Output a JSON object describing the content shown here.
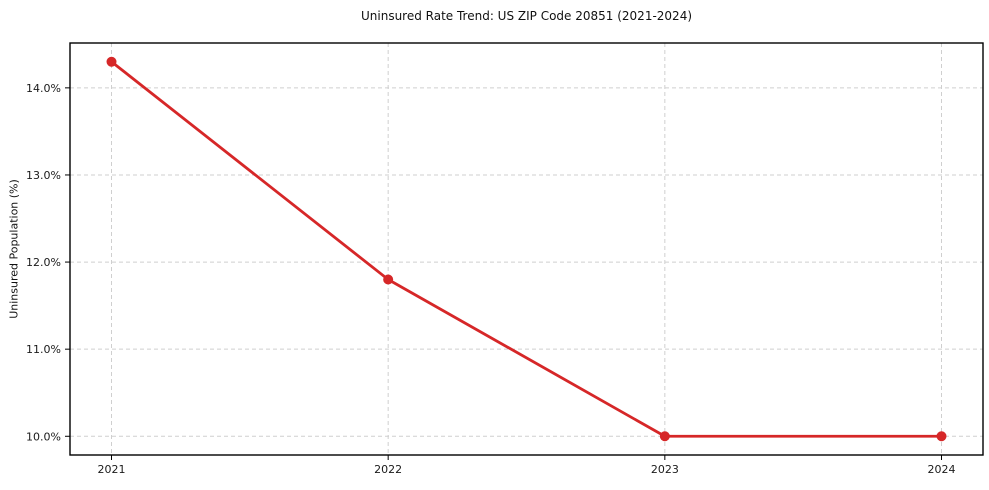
{
  "chart_data": {
    "type": "line",
    "title": "Uninsured Rate Trend: US ZIP Code 20851 (2021-2024)",
    "xlabel": "",
    "ylabel": "Uninsured Population (%)",
    "x": [
      2021,
      2022,
      2023,
      2024
    ],
    "y": [
      14.3,
      11.8,
      10.0,
      10.0
    ],
    "x_tick_labels": [
      "2021",
      "2022",
      "2023",
      "2024"
    ],
    "y_ticks": [
      10.0,
      11.0,
      12.0,
      13.0,
      14.0
    ],
    "y_tick_labels": [
      "10.0%",
      "11.0%",
      "12.0%",
      "13.0%",
      "14.0%"
    ],
    "xlim": [
      2020.85,
      2024.15
    ],
    "ylim": [
      9.785,
      14.515
    ],
    "grid": "dashed",
    "legend": "none",
    "series_name": "Uninsured rate",
    "line_color": "#d62728",
    "grid_color": "#cfcfcf",
    "tick_text_color": "#1a1a1a",
    "spine_color": "#000000",
    "marker": "circle",
    "background": "#ffffff"
  }
}
